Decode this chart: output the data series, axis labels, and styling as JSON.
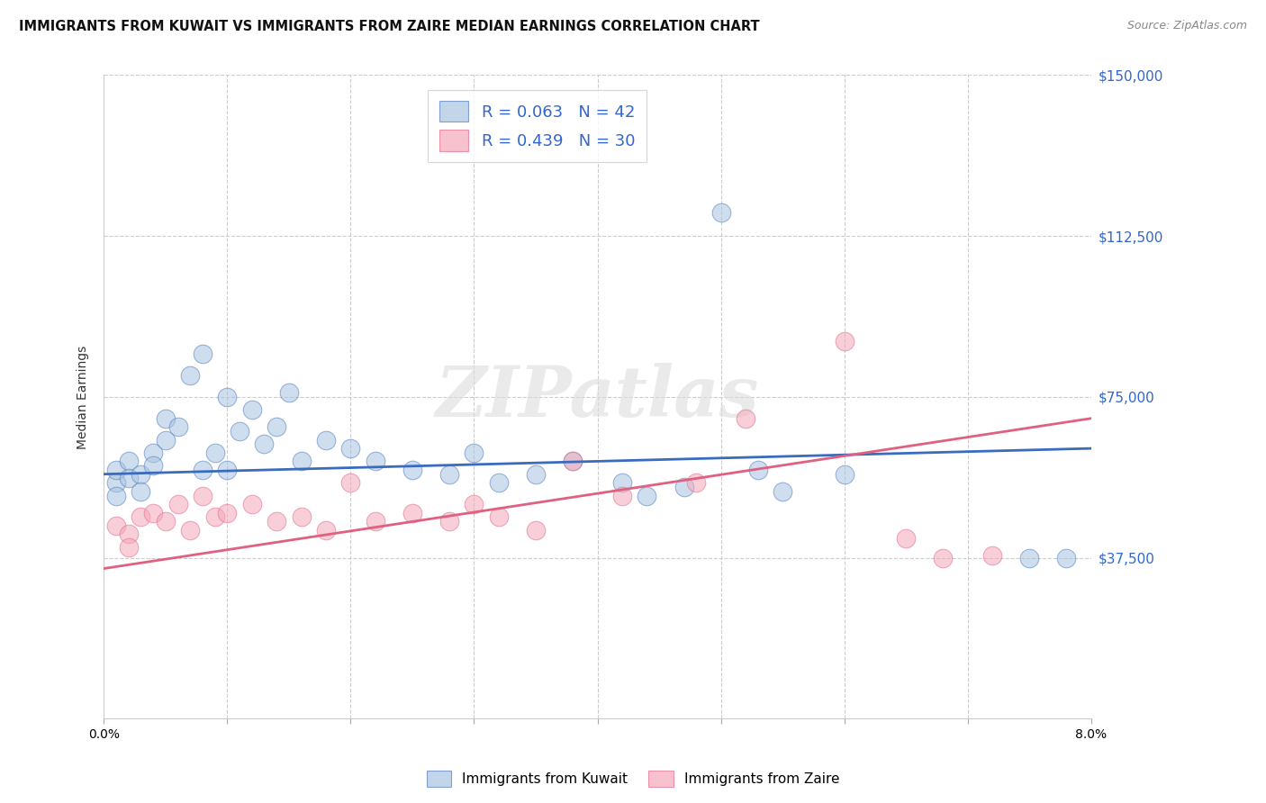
{
  "title": "IMMIGRANTS FROM KUWAIT VS IMMIGRANTS FROM ZAIRE MEDIAN EARNINGS CORRELATION CHART",
  "source": "Source: ZipAtlas.com",
  "ylabel": "Median Earnings",
  "legend_label1": "Immigrants from Kuwait",
  "legend_label2": "Immigrants from Zaire",
  "r1": 0.063,
  "n1": 42,
  "r2": 0.439,
  "n2": 30,
  "color_blue": "#A8C4E0",
  "color_pink": "#F4A8B8",
  "color_blue_line": "#3A6BBF",
  "color_pink_line": "#E06080",
  "color_blue_dark": "#5580C0",
  "color_pink_dark": "#E07090",
  "watermark": "ZIPatlas",
  "xmin": 0.0,
  "xmax": 0.08,
  "ymin": 0,
  "ymax": 150000,
  "yticks": [
    0,
    37500,
    75000,
    112500,
    150000
  ],
  "ytick_labels": [
    "",
    "$37,500",
    "$75,000",
    "$112,500",
    "$150,000"
  ],
  "blue_line_y0": 57000,
  "blue_line_y1": 63000,
  "pink_line_y0": 35000,
  "pink_line_y1": 70000,
  "blue_x": [
    0.001,
    0.001,
    0.001,
    0.002,
    0.002,
    0.003,
    0.003,
    0.004,
    0.004,
    0.005,
    0.005,
    0.006,
    0.007,
    0.008,
    0.008,
    0.009,
    0.01,
    0.01,
    0.011,
    0.012,
    0.013,
    0.014,
    0.015,
    0.016,
    0.018,
    0.02,
    0.022,
    0.025,
    0.028,
    0.03,
    0.032,
    0.035,
    0.038,
    0.042,
    0.044,
    0.047,
    0.05,
    0.053,
    0.055,
    0.06,
    0.075,
    0.078
  ],
  "blue_y": [
    55000,
    58000,
    52000,
    60000,
    56000,
    57000,
    53000,
    62000,
    59000,
    65000,
    70000,
    68000,
    80000,
    85000,
    58000,
    62000,
    58000,
    75000,
    67000,
    72000,
    64000,
    68000,
    76000,
    60000,
    65000,
    63000,
    60000,
    58000,
    57000,
    62000,
    55000,
    57000,
    60000,
    55000,
    52000,
    54000,
    118000,
    58000,
    53000,
    57000,
    37500,
    37500
  ],
  "pink_x": [
    0.001,
    0.002,
    0.002,
    0.003,
    0.004,
    0.005,
    0.006,
    0.007,
    0.008,
    0.009,
    0.01,
    0.012,
    0.014,
    0.016,
    0.018,
    0.02,
    0.022,
    0.025,
    0.028,
    0.03,
    0.032,
    0.035,
    0.038,
    0.042,
    0.048,
    0.052,
    0.06,
    0.065,
    0.068,
    0.072
  ],
  "pink_y": [
    45000,
    43000,
    40000,
    47000,
    48000,
    46000,
    50000,
    44000,
    52000,
    47000,
    48000,
    50000,
    46000,
    47000,
    44000,
    55000,
    46000,
    48000,
    46000,
    50000,
    47000,
    44000,
    60000,
    52000,
    55000,
    70000,
    88000,
    42000,
    37500,
    38000
  ]
}
